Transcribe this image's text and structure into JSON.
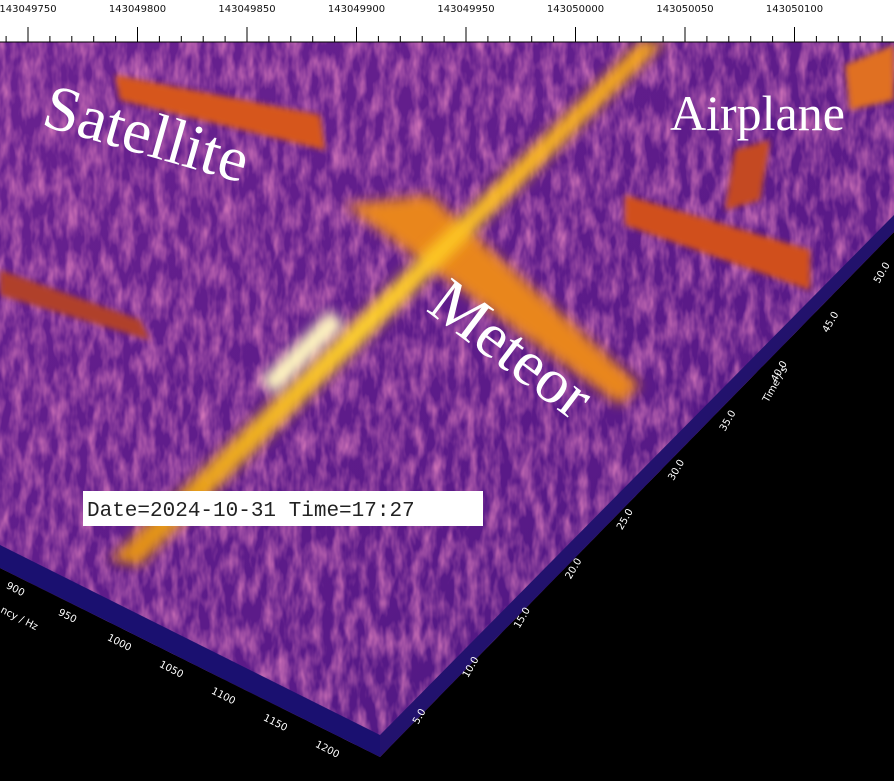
{
  "top_axis": {
    "ticks": [
      "143049750",
      "143049800",
      "143049850",
      "143049900",
      "143049950",
      "143050000",
      "143050050",
      "143050100"
    ]
  },
  "frequency_axis": {
    "label": "ncy / Hz",
    "ticks": [
      "900",
      "950",
      "1000",
      "1050",
      "1100",
      "1150",
      "1200"
    ]
  },
  "time_axis": {
    "label": "Time / s",
    "ticks": [
      "5.0",
      "10.0",
      "15.0",
      "20.0",
      "25.0",
      "30.0",
      "35.0",
      "40.0",
      "45.0",
      "50.0"
    ]
  },
  "annotations": {
    "satellite": "Satellite",
    "airplane": "Airplane",
    "meteor": "Meteor"
  },
  "timestamp": "Date=2024-10-31 Time=17:27"
}
